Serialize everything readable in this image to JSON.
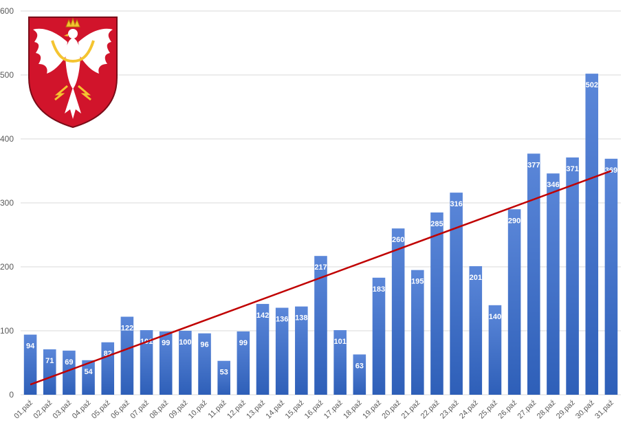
{
  "chart_data": {
    "type": "bar",
    "categories": [
      "01.paź",
      "02.paź",
      "03.paź",
      "04.paź",
      "05.paź",
      "06.paź",
      "07.paź",
      "08.paź",
      "09.paź",
      "10.paź",
      "11.paź",
      "12.paź",
      "13.paź",
      "14.paź",
      "15.paź",
      "16.paź",
      "17.paź",
      "18.paź",
      "19.paź",
      "20.paź",
      "21.paź",
      "22.paź",
      "23.paź",
      "24.paź",
      "25.paź",
      "26.paź",
      "27.paź",
      "28.paź",
      "29.paź",
      "30.paź",
      "31.paź"
    ],
    "values": [
      94,
      71,
      69,
      54,
      82,
      122,
      101,
      99,
      100,
      96,
      53,
      99,
      142,
      136,
      138,
      217,
      101,
      63,
      183,
      260,
      195,
      285,
      316,
      201,
      140,
      290,
      377,
      346,
      371,
      502,
      369
    ],
    "ylim": [
      0,
      600
    ],
    "yticks": [
      0,
      100,
      200,
      300,
      400,
      500,
      600
    ],
    "grid": true,
    "legend": "none",
    "trendline": {
      "type": "linear",
      "color": "#c00000"
    },
    "colors": {
      "bar_top": "#5b87d9",
      "bar_bottom": "#2e5fb8",
      "trend": "#c00000",
      "grid": "#d9d9d9"
    },
    "logo": {
      "icon": "malopolska-coat-of-arms-icon",
      "field_color": "#d1142b",
      "eagle_color": "#ffffff",
      "crown_color": "#f4c430"
    }
  }
}
